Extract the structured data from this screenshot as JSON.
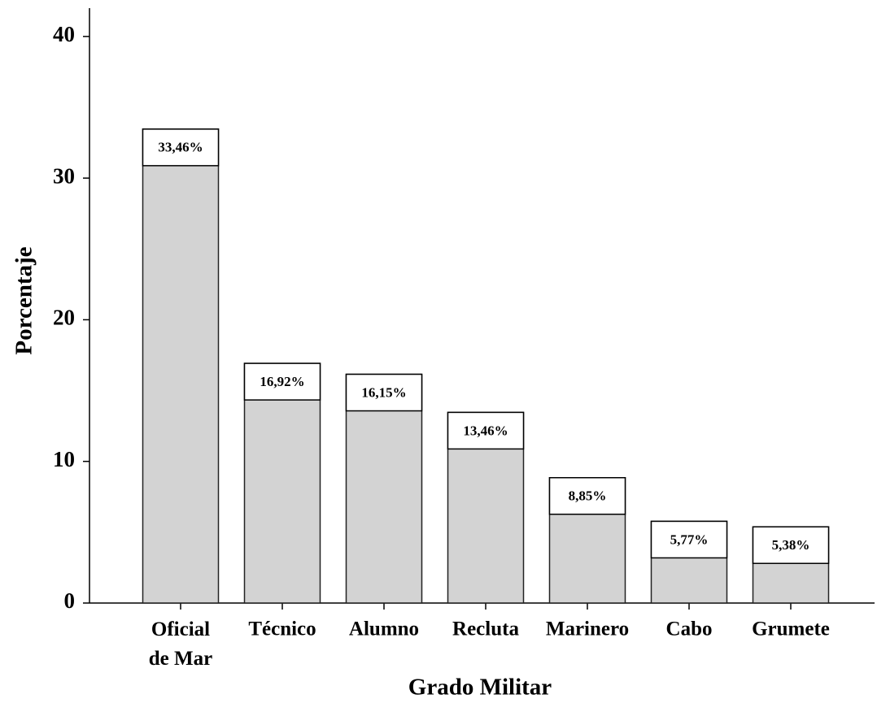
{
  "chart_data": {
    "type": "bar",
    "x_label": "Grado Militar",
    "y_label": "Porcentaje",
    "categories": [
      "Oficial\nde Mar",
      "Técnico",
      "Alumno",
      "Recluta",
      "Marinero",
      "Cabo",
      "Grumete"
    ],
    "values": [
      33.46,
      16.92,
      16.15,
      13.46,
      8.85,
      5.77,
      5.38
    ],
    "value_labels": [
      "33,46%",
      "16,92%",
      "16,15%",
      "13,46%",
      "8,85%",
      "5,77%",
      "5,38%"
    ],
    "color": "#d3d3d3",
    "ylim": [
      0,
      42
    ],
    "yticks": [
      0,
      10,
      20,
      30,
      40
    ],
    "grid": false
  }
}
